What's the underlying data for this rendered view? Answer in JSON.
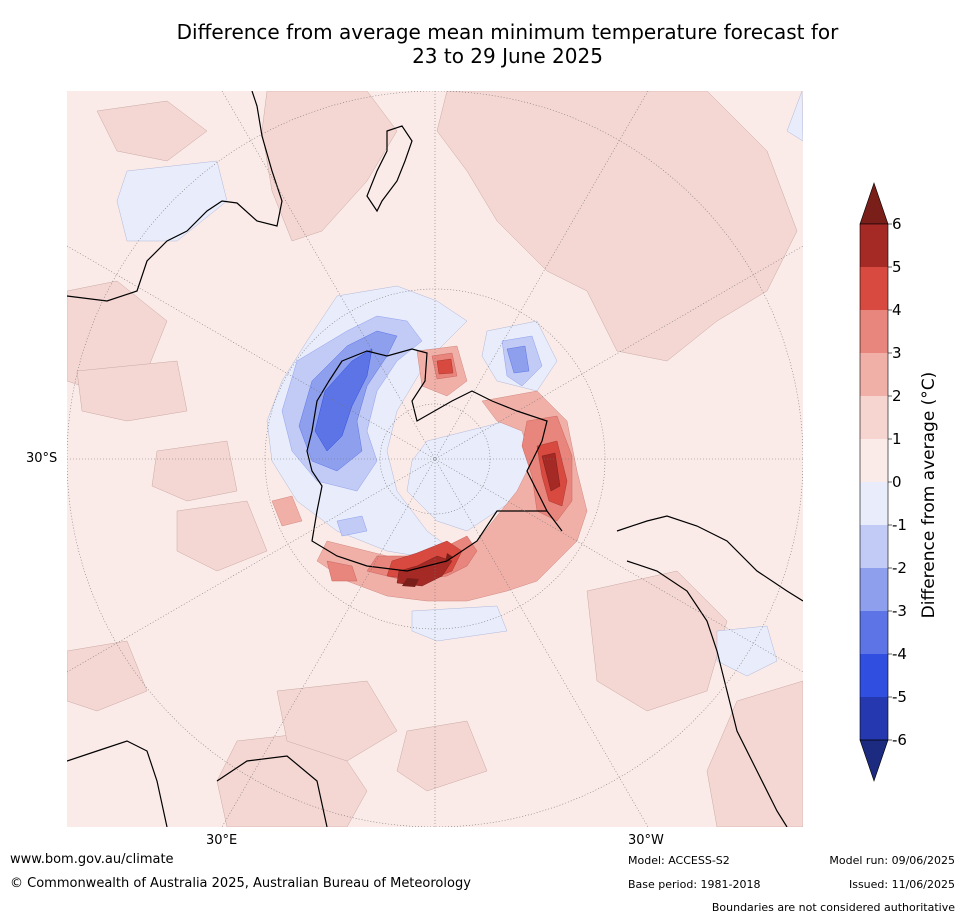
{
  "title": {
    "line1": "Difference from average mean minimum temperature forecast for",
    "line2": "23 to 29 June 2025"
  },
  "map": {
    "projection": "South polar stereographic",
    "lat_label": "30°S",
    "lon_labels": [
      "30°E",
      "30°W"
    ]
  },
  "colorbar": {
    "label": "Difference from average (°C)",
    "ticks": [
      "6",
      "5",
      "4",
      "3",
      "2",
      "1",
      "0",
      "-1",
      "-2",
      "-3",
      "-4",
      "-5",
      "-6"
    ],
    "colors": [
      "#7a1e1a",
      "#a52a25",
      "#d84a40",
      "#e8857c",
      "#f0b0a8",
      "#f6d5d1",
      "#fbebe8",
      "#e8ecfb",
      "#c2cbf5",
      "#8e9fed",
      "#5c74e6",
      "#304fe0",
      "#2538b0",
      "#1c2a80"
    ]
  },
  "footer": {
    "site": "www.bom.gov.au/climate",
    "copyright": "© Commonwealth of Australia 2025, Australian Bureau of Meteorology",
    "model": "Model: ACCESS-S2",
    "base_period": "Base period: 1981-2018",
    "model_run": "Model run: 09/06/2025",
    "issued": "Issued: 11/06/2025",
    "disclaimer": "Boundaries are not considered authoritative"
  }
}
